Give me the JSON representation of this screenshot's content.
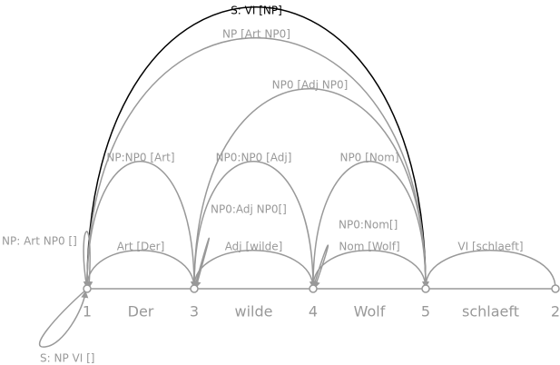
{
  "nodes": [
    {
      "label": "1"
    },
    {
      "label": "3"
    },
    {
      "label": "4"
    },
    {
      "label": "5"
    },
    {
      "label": "2"
    }
  ],
  "words": [
    "Der",
    "wilde",
    "Wolf",
    "schlaeft"
  ],
  "edges": [
    {
      "label": "S: VI [NP]"
    },
    {
      "label": "NP [Art NP0]"
    },
    {
      "label": "NP0 [Adj NP0]"
    },
    {
      "label": "NP:NP0 [Art]"
    },
    {
      "label": "NP0:NP0 [Adj]"
    },
    {
      "label": "NP0 [Nom]"
    },
    {
      "label": "Art [Der]"
    },
    {
      "label": "Adj [wilde]"
    },
    {
      "label": "Nom [Wolf]"
    },
    {
      "label": "VI [schlaeft]"
    },
    {
      "label": "NP: Art NP0 []"
    },
    {
      "label": "NP0:Adj NP0[]"
    },
    {
      "label": "NP0:Nom[]"
    },
    {
      "label": "S: NP VI []"
    }
  ]
}
